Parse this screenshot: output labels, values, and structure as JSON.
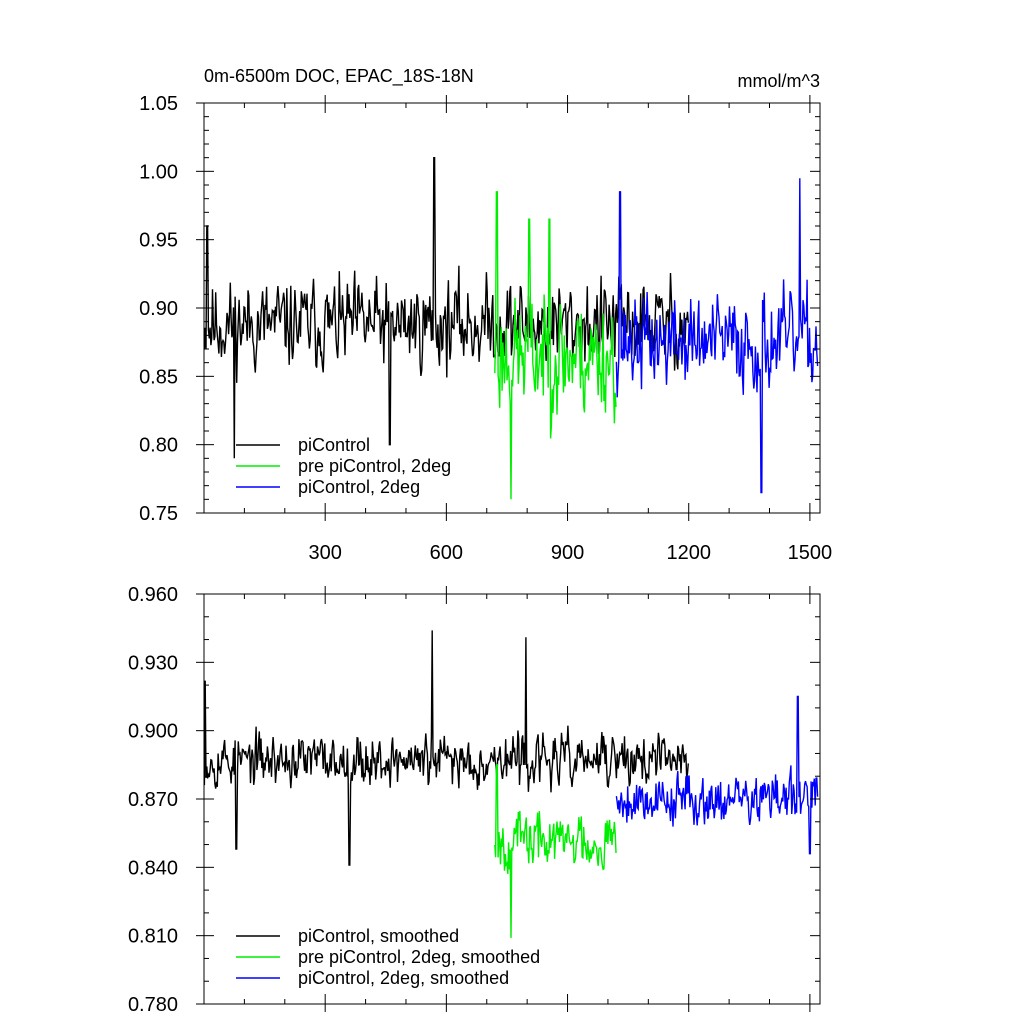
{
  "chart_data": [
    {
      "type": "line",
      "title": "0m-6500m DOC, EPAC_18S-18N",
      "units": "mmol/m^3",
      "xlim": [
        0,
        1525
      ],
      "ylim": [
        0.75,
        1.05
      ],
      "x_ticks": [
        "300",
        "600",
        "900",
        "1200",
        "1500"
      ],
      "y_ticks": [
        "0.75",
        "0.80",
        "0.85",
        "0.90",
        "0.95",
        "1.00",
        "1.05"
      ],
      "grid": false,
      "legend_position": "bottom-left",
      "series": [
        {
          "name": "piControl",
          "color": "#000000",
          "x_range": [
            1,
            1200
          ],
          "mean": 0.888,
          "noise": 0.028,
          "seed": 11,
          "anchors": [
            [
              460,
              0.8
            ],
            [
              570,
              1.01
            ],
            [
              75,
              0.79
            ],
            [
              8,
              0.96
            ]
          ]
        },
        {
          "name": "pre piControl, 2deg",
          "color": "#00ee00",
          "x_range": [
            720,
            1020
          ],
          "mean": 0.865,
          "noise": 0.038,
          "seed": 23,
          "anchors": [
            [
              725,
              0.985
            ],
            [
              760,
              0.76
            ],
            [
              805,
              0.965
            ],
            [
              855,
              0.965
            ]
          ]
        },
        {
          "name": "piControl, 2deg",
          "color": "#0000ff",
          "x_range": [
            1021,
            1520
          ],
          "mean": 0.875,
          "noise": 0.03,
          "seed": 37,
          "anchors": [
            [
              1380,
              0.765
            ],
            [
              1475,
              0.995
            ],
            [
              1030,
              0.985
            ]
          ]
        }
      ]
    },
    {
      "type": "line",
      "title": "",
      "xlim": [
        0,
        1525
      ],
      "ylim": [
        0.78,
        0.96
      ],
      "y_ticks": [
        "0.780",
        "0.810",
        "0.840",
        "0.870",
        "0.900",
        "0.930",
        "0.960"
      ],
      "grid": false,
      "legend_position": "bottom-left",
      "series": [
        {
          "name": "piControl, smoothed",
          "color": "#000000",
          "x_range": [
            1,
            1200
          ],
          "mean": 0.887,
          "noise": 0.01,
          "seed": 53,
          "anchors": [
            [
              3,
              0.922
            ],
            [
              80,
              0.848
            ],
            [
              360,
              0.841
            ],
            [
              565,
              0.944
            ],
            [
              797,
              0.941
            ]
          ]
        },
        {
          "name": "pre piControl, 2deg, smoothed",
          "color": "#00ee00",
          "x_range": [
            720,
            1020
          ],
          "mean": 0.852,
          "noise": 0.011,
          "seed": 67,
          "anchors": [
            [
              760,
              0.809
            ],
            [
              725,
              0.885
            ]
          ]
        },
        {
          "name": "piControl, 2deg, smoothed",
          "color": "#0000ff",
          "x_range": [
            1021,
            1520
          ],
          "mean": 0.87,
          "noise": 0.01,
          "seed": 79,
          "anchors": [
            [
              1470,
              0.915
            ],
            [
              1500,
              0.846
            ]
          ]
        }
      ]
    }
  ]
}
